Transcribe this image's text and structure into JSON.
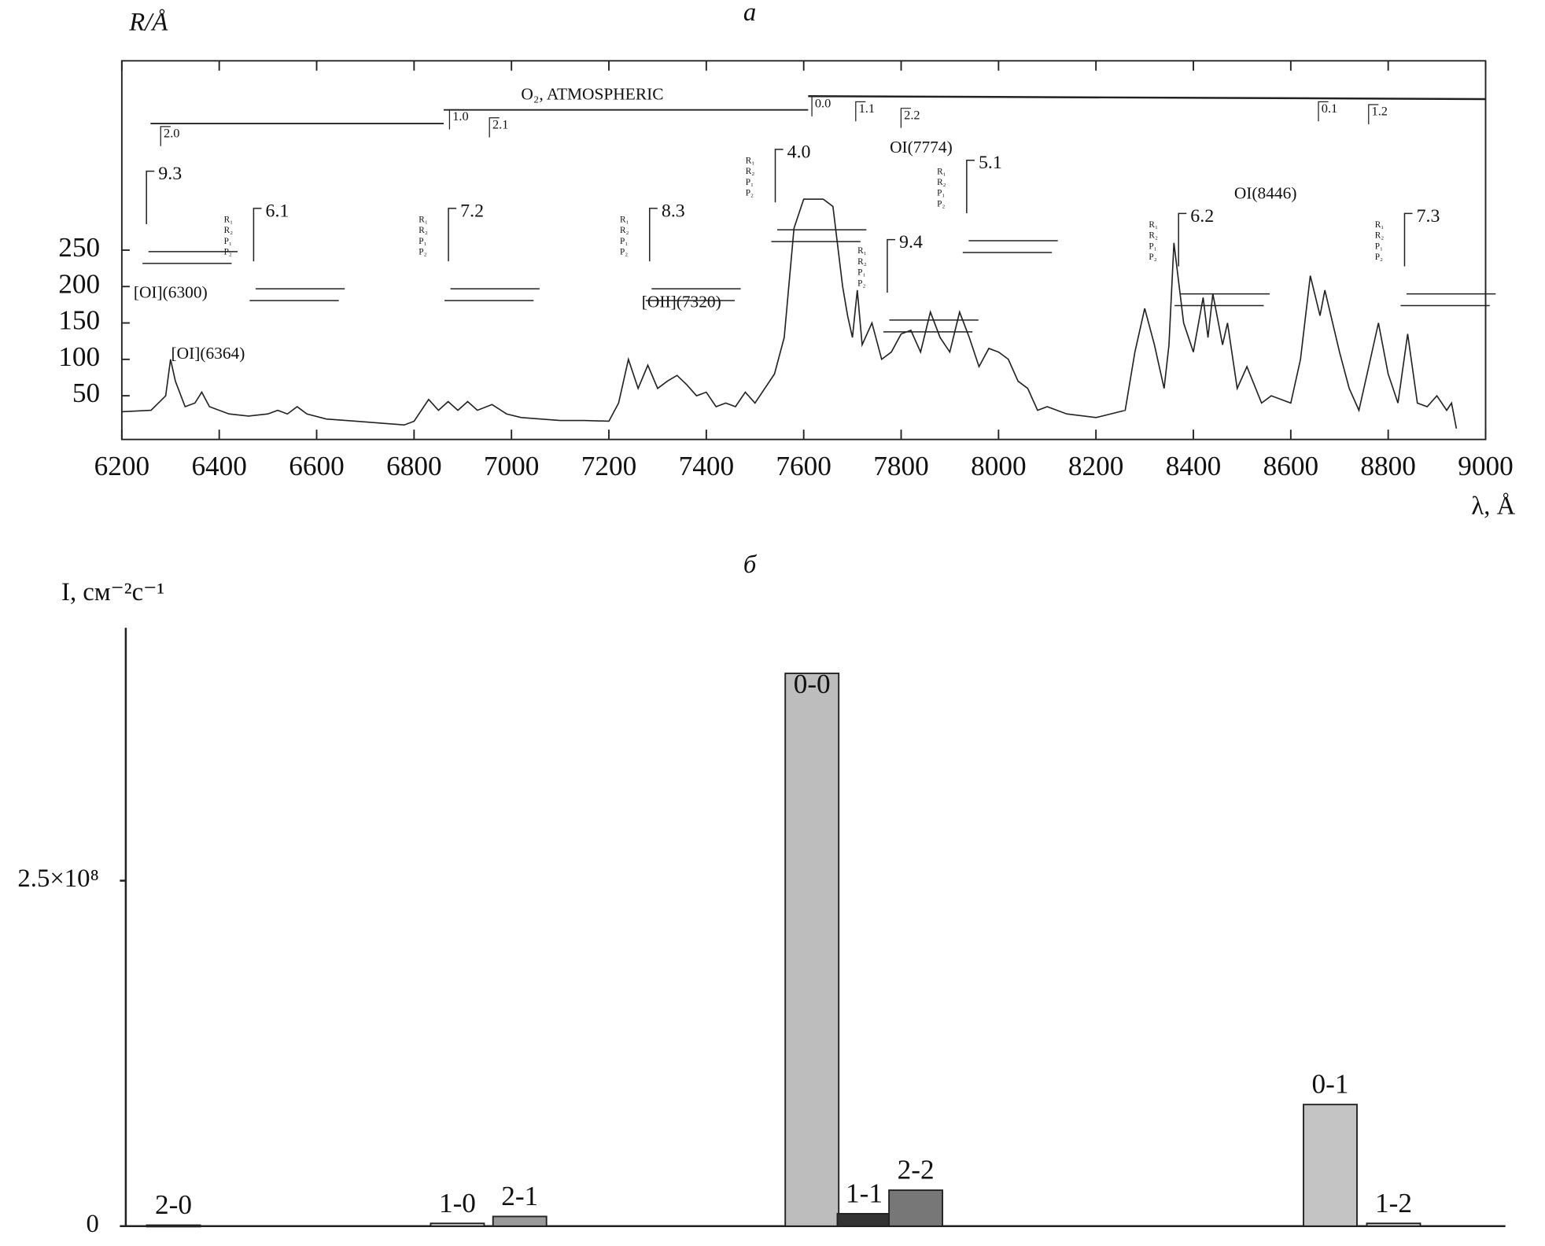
{
  "chart_data": [
    {
      "type": "line",
      "title": "а",
      "y_label": "R/Å",
      "x_label": "λ, Å",
      "xlim": [
        6200,
        9000
      ],
      "ylim": [
        -10,
        510
      ],
      "xticks": [
        6200,
        6400,
        6600,
        6800,
        7000,
        7200,
        7400,
        7600,
        7800,
        8000,
        8200,
        8400,
        8600,
        8800,
        9000
      ],
      "yticks": [
        50,
        100,
        150,
        200,
        250
      ],
      "color": "#222",
      "x": [
        6200,
        6260,
        6290,
        6300,
        6310,
        6330,
        6350,
        6364,
        6380,
        6420,
        6460,
        6500,
        6520,
        6540,
        6560,
        6580,
        6620,
        6680,
        6740,
        6780,
        6800,
        6830,
        6850,
        6870,
        6890,
        6910,
        6930,
        6960,
        6990,
        7020,
        7060,
        7100,
        7150,
        7200,
        7220,
        7240,
        7260,
        7280,
        7300,
        7320,
        7340,
        7360,
        7380,
        7400,
        7420,
        7440,
        7460,
        7480,
        7500,
        7520,
        7540,
        7560,
        7580,
        7600,
        7620,
        7640,
        7660,
        7680,
        7690,
        7700,
        7710,
        7720,
        7740,
        7760,
        7780,
        7800,
        7820,
        7840,
        7860,
        7880,
        7900,
        7920,
        7940,
        7960,
        7980,
        8000,
        8020,
        8040,
        8060,
        8080,
        8100,
        8140,
        8200,
        8260,
        8280,
        8300,
        8320,
        8340,
        8350,
        8360,
        8380,
        8400,
        8420,
        8430,
        8440,
        8460,
        8470,
        8490,
        8510,
        8540,
        8560,
        8600,
        8620,
        8640,
        8660,
        8670,
        8700,
        8720,
        8740,
        8760,
        8780,
        8800,
        8820,
        8840,
        8860,
        8880,
        8900,
        8920,
        8930,
        8940
      ],
      "values": [
        28,
        30,
        50,
        100,
        70,
        35,
        40,
        55,
        35,
        25,
        22,
        25,
        30,
        25,
        35,
        25,
        18,
        15,
        12,
        10,
        15,
        45,
        30,
        42,
        30,
        42,
        30,
        38,
        25,
        20,
        18,
        16,
        16,
        15,
        40,
        100,
        60,
        92,
        60,
        70,
        78,
        65,
        50,
        55,
        35,
        40,
        35,
        55,
        40,
        60,
        80,
        130,
        280,
        320,
        320,
        320,
        310,
        200,
        160,
        130,
        195,
        120,
        150,
        100,
        110,
        135,
        140,
        110,
        165,
        130,
        110,
        165,
        130,
        90,
        115,
        110,
        100,
        70,
        60,
        30,
        35,
        25,
        20,
        30,
        110,
        170,
        120,
        60,
        120,
        260,
        150,
        110,
        185,
        130,
        190,
        120,
        150,
        60,
        90,
        40,
        50,
        40,
        100,
        215,
        160,
        195,
        110,
        60,
        30,
        90,
        150,
        80,
        40,
        135,
        40,
        35,
        50,
        30,
        40,
        5
      ],
      "branch_labels": [
        "R₁",
        "R₂",
        "P₁",
        "P₂"
      ],
      "annotations": [
        {
          "text": "[OI](6300)",
          "x": 6300,
          "y": 190
        },
        {
          "text": "[OI](6364)",
          "x": 6377,
          "y": 106
        },
        {
          "text": "[OII](7320)",
          "x": 7349,
          "y": 177
        },
        {
          "text": "OI(7774)",
          "x": 7841,
          "y": 389
        },
        {
          "text": "OI(8446)",
          "x": 8548,
          "y": 326
        },
        {
          "text": "O₂, ATMOSPHERIC",
          "x": 7166,
          "y": 462
        }
      ],
      "band_heads": [
        {
          "text": "9.3",
          "x": 6275,
          "y": 353
        },
        {
          "text": "6.1",
          "x": 6495,
          "y": 302
        },
        {
          "text": "7.2",
          "x": 6895,
          "y": 302
        },
        {
          "text": "8.3",
          "x": 7308,
          "y": 302
        },
        {
          "text": "4.0",
          "x": 7566,
          "y": 383
        },
        {
          "text": "5.1",
          "x": 7959,
          "y": 368
        },
        {
          "text": "9.4",
          "x": 7796,
          "y": 259
        },
        {
          "text": "6.2",
          "x": 8394,
          "y": 295
        },
        {
          "text": "7.3",
          "x": 8858,
          "y": 295
        }
      ],
      "atmospheric_bands": [
        {
          "text": "2.0",
          "x": 6292,
          "y": 409
        },
        {
          "text": "1.0",
          "x": 6885,
          "y": 432
        },
        {
          "text": "2.1",
          "x": 6967,
          "y": 421
        },
        {
          "text": "0.0",
          "x": 7629,
          "y": 450
        },
        {
          "text": "1.1",
          "x": 7719,
          "y": 443
        },
        {
          "text": "2.2",
          "x": 7812,
          "y": 434
        },
        {
          "text": "0.1",
          "x": 8669,
          "y": 443
        },
        {
          "text": "1.2",
          "x": 8772,
          "y": 439
        }
      ]
    },
    {
      "type": "bar",
      "title": "б",
      "y_label": "I, см⁻²с⁻¹",
      "xlim": [
        6200,
        9000
      ],
      "ylim": [
        0,
        433000000
      ],
      "yticks": [
        0,
        {
          "value": 250000000,
          "label": "2.5×10⁸"
        }
      ],
      "categories": [
        "2-0",
        "1-0",
        "2-1",
        "0-0",
        "1-1",
        "2-2",
        "0-1",
        "1-2"
      ],
      "x": [
        6306,
        6889,
        7017,
        7617,
        7724,
        7830,
        8681,
        8811
      ],
      "values": [
        700000,
        2000000,
        7000000,
        400000000,
        9000000,
        26000000,
        88000000,
        2000000
      ],
      "colors": [
        "#d8d8d8",
        "#d0d0d0",
        "#9a9a9a",
        "#bdbdbd",
        "#333333",
        "#777777",
        "#c4c4c4",
        "#c8c8c8"
      ]
    }
  ]
}
